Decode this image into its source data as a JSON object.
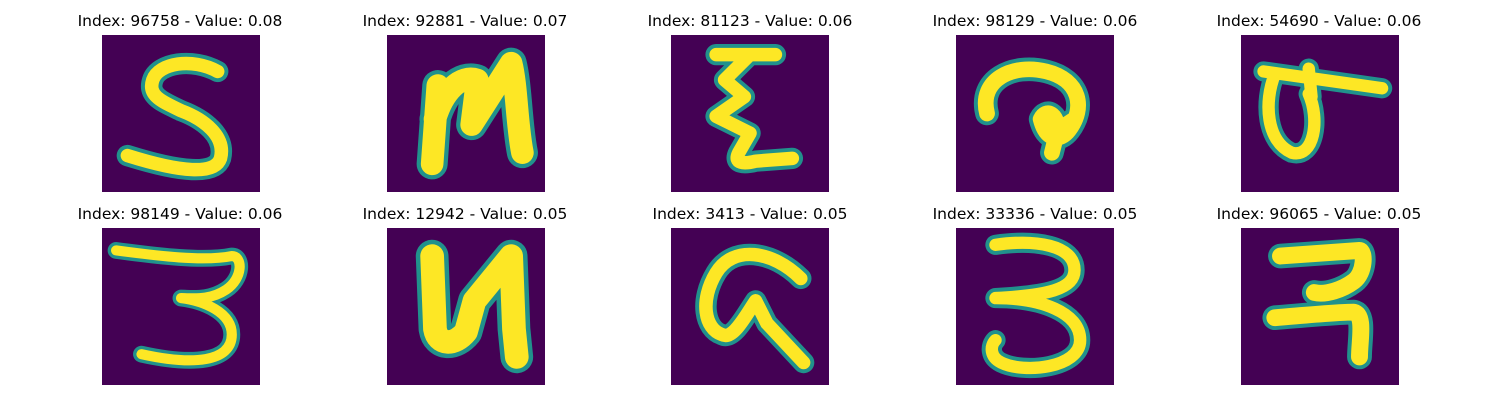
{
  "colors": {
    "background": "#440154",
    "edge_mid": "#21918c",
    "edge_light": "#5ec962",
    "stroke": "#fde725"
  },
  "panels": [
    {
      "title": "Index: 96758 - Value: 0.08",
      "glyph": "handwritten-s"
    },
    {
      "title": "Index: 92881 - Value: 0.07",
      "glyph": "handwritten-n"
    },
    {
      "title": "Index: 81123 - Value: 0.06",
      "glyph": "handwritten-zigzag"
    },
    {
      "title": "Index: 98129 - Value: 0.06",
      "glyph": "handwritten-curl"
    },
    {
      "title": "Index: 54690 - Value: 0.06",
      "glyph": "handwritten-loop-bar"
    },
    {
      "title": "Index: 98149 - Value: 0.06",
      "glyph": "handwritten-3"
    },
    {
      "title": "Index: 12942 - Value: 0.05",
      "glyph": "handwritten-n"
    },
    {
      "title": "Index: 3413 - Value: 0.05",
      "glyph": "handwritten-a"
    },
    {
      "title": "Index: 33336 - Value: 0.05",
      "glyph": "handwritten-3"
    },
    {
      "title": "Index: 96065 - Value: 0.05",
      "glyph": "handwritten-hook"
    }
  ]
}
